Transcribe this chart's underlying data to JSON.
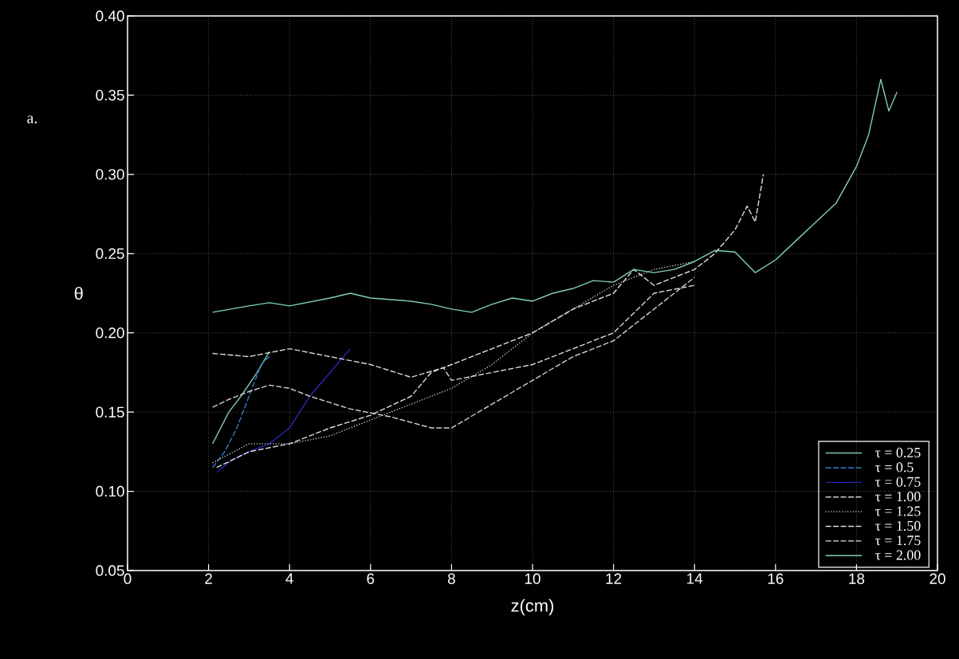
{
  "chart_data": {
    "type": "line",
    "xlabel": "z(cm)",
    "ylabel": "θ",
    "annotations": [
      "a."
    ],
    "xlim": [
      0,
      20
    ],
    "ylim": [
      0.05,
      0.4
    ],
    "xticks": [
      0,
      2,
      4,
      6,
      8,
      10,
      12,
      14,
      16,
      18,
      20
    ],
    "yticks": [
      {
        "value": 0.05,
        "label": "0.05"
      },
      {
        "value": 0.1,
        "label": "0.10"
      },
      {
        "value": 0.15,
        "label": "0.15"
      },
      {
        "value": 0.2,
        "label": "0.20"
      },
      {
        "value": 0.25,
        "label": "0.25"
      },
      {
        "value": 0.3,
        "label": "0.30"
      },
      {
        "value": 0.35,
        "label": "0.35"
      },
      {
        "value": 0.4,
        "label": "0.40"
      }
    ],
    "grid": true,
    "legend": "bottom right",
    "marker": "none",
    "series": [
      {
        "name": "τ = 0.25",
        "color": "#7ec8b0",
        "line_style": "solid",
        "x": [
          2.1,
          2.3,
          2.5,
          2.8,
          3.2,
          3.5
        ],
        "values": [
          0.13,
          0.14,
          0.15,
          0.16,
          0.175,
          0.188
        ]
      },
      {
        "name": "τ = 0.5",
        "color": "#2f7fd0",
        "line_style": "dashed",
        "x": [
          2.1,
          2.4,
          2.7,
          3.0,
          3.3,
          3.5
        ],
        "values": [
          0.115,
          0.125,
          0.14,
          0.16,
          0.18,
          0.185
        ]
      },
      {
        "name": "τ = 0.75",
        "color": "#2828b0",
        "line_style": "solid",
        "x": [
          2.2,
          2.6,
          3.0,
          3.5,
          4.0,
          4.5,
          5.0,
          5.5
        ],
        "values": [
          0.112,
          0.12,
          0.125,
          0.13,
          0.14,
          0.16,
          0.175,
          0.19
        ]
      },
      {
        "name": "τ = 1.00",
        "color": "#d0d0d0",
        "line_style": "dashed",
        "x": [
          2.1,
          2.5,
          3.0,
          3.5,
          4.0,
          4.5,
          5.5,
          6.5,
          7.5,
          8.0,
          9.0,
          10.0,
          11.0,
          12.0,
          13.0,
          14.0
        ],
        "values": [
          0.153,
          0.158,
          0.163,
          0.167,
          0.165,
          0.16,
          0.152,
          0.147,
          0.14,
          0.14,
          0.155,
          0.17,
          0.185,
          0.195,
          0.215,
          0.235
        ]
      },
      {
        "name": "τ = 1.25",
        "color": "#c0c0c0",
        "line_style": "dotted",
        "x": [
          2.1,
          3,
          4,
          5,
          6,
          7,
          8,
          9,
          10,
          11,
          12,
          13,
          14
        ],
        "values": [
          0.118,
          0.13,
          0.13,
          0.135,
          0.145,
          0.155,
          0.165,
          0.18,
          0.2,
          0.215,
          0.23,
          0.24,
          0.245
        ]
      },
      {
        "name": "τ = 1.50",
        "color": "#d8d8d8",
        "line_style": "dashed",
        "x": [
          2.1,
          3,
          4,
          5,
          6,
          7,
          7.8,
          8,
          9,
          10,
          11,
          12,
          13,
          14
        ],
        "values": [
          0.187,
          0.185,
          0.19,
          0.185,
          0.18,
          0.172,
          0.178,
          0.17,
          0.175,
          0.18,
          0.19,
          0.2,
          0.225,
          0.23
        ]
      },
      {
        "name": "τ = 1.75",
        "color": "#e0e0e0",
        "line_style": "dashed",
        "x": [
          2.2,
          3,
          4,
          5,
          6,
          7,
          7.5,
          8,
          9,
          10,
          11,
          12,
          12.5,
          13,
          14,
          14.5,
          15,
          15.3,
          15.5,
          15.7
        ],
        "values": [
          0.115,
          0.125,
          0.13,
          0.14,
          0.148,
          0.16,
          0.175,
          0.18,
          0.19,
          0.2,
          0.215,
          0.225,
          0.24,
          0.23,
          0.24,
          0.25,
          0.265,
          0.28,
          0.27,
          0.3
        ]
      },
      {
        "name": "τ = 2.00",
        "color": "#80d0b0",
        "line_style": "solid",
        "x": [
          2.1,
          3,
          3.5,
          4,
          5,
          5.5,
          6,
          7,
          7.5,
          8,
          8.5,
          9,
          9.5,
          10,
          10.5,
          11,
          11.5,
          12,
          12.5,
          13,
          13.5,
          14,
          14.5,
          15,
          15.5,
          16,
          16.5,
          17,
          17.5,
          18,
          18.3,
          18.6,
          18.8,
          19
        ],
        "values": [
          0.213,
          0.217,
          0.219,
          0.217,
          0.222,
          0.225,
          0.222,
          0.22,
          0.218,
          0.215,
          0.213,
          0.218,
          0.222,
          0.22,
          0.225,
          0.228,
          0.233,
          0.232,
          0.24,
          0.238,
          0.24,
          0.245,
          0.252,
          0.251,
          0.238,
          0.246,
          0.258,
          0.27,
          0.282,
          0.305,
          0.325,
          0.36,
          0.34,
          0.352
        ]
      }
    ]
  }
}
